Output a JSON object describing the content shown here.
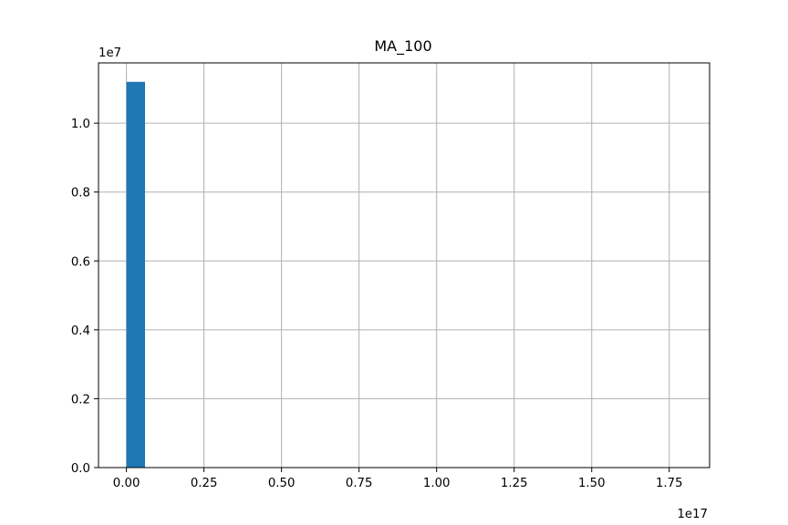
{
  "chart_data": {
    "type": "bar",
    "title": "MA_100",
    "xlabel": "",
    "ylabel": "",
    "x_offset_label": "1e17",
    "y_offset_label": "1e7",
    "xlim": [
      -0.09,
      1.88
    ],
    "ylim": [
      0,
      1.175
    ],
    "x_ticks": [
      0,
      0.25,
      0.5,
      0.75,
      1.0,
      1.25,
      1.5,
      1.75
    ],
    "x_tick_labels": [
      "0.00",
      "0.25",
      "0.50",
      "0.75",
      "1.00",
      "1.25",
      "1.50",
      "1.75"
    ],
    "y_ticks": [
      0,
      0.2,
      0.4,
      0.6,
      0.8,
      1.0
    ],
    "y_tick_labels": [
      "0.0",
      "0.2",
      "0.4",
      "0.6",
      "0.8",
      "1.0"
    ],
    "bins": [
      {
        "x0": 0.0,
        "x1": 0.06,
        "value": 1.12
      }
    ],
    "grid": true,
    "bar_color": "#1f77b4",
    "grid_color": "#b0b0b0"
  }
}
